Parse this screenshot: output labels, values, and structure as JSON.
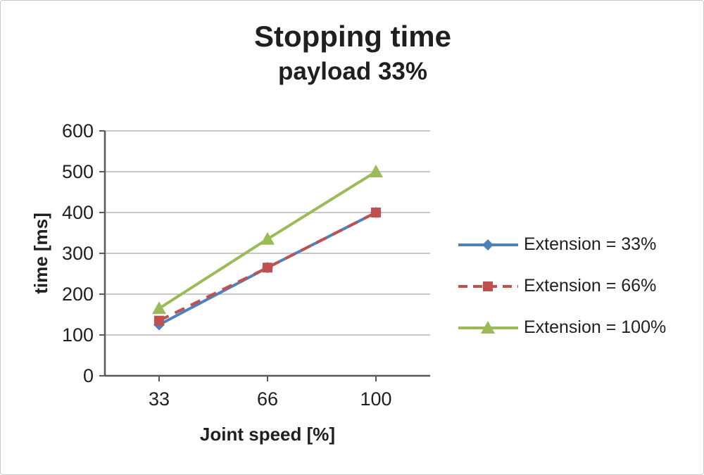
{
  "window": {
    "background": "#ffffff",
    "border_color": "#c9c9c9"
  },
  "chart_data": {
    "type": "line",
    "title": "Stopping time",
    "subtitle": "payload 33%",
    "xlabel": "Joint speed [%]",
    "ylabel": "time [ms]",
    "categories": [
      "33",
      "66",
      "100"
    ],
    "ylim": [
      0,
      600
    ],
    "ytick_step": 100,
    "grid": true,
    "legend_position": "right",
    "colors": {
      "gridline": "#b5b5b5",
      "axis": "#595959",
      "text": "#1f1f1f"
    },
    "series": [
      {
        "name": "Extension = 33%",
        "values": [
          125,
          265,
          400
        ],
        "color": "#4F81BD",
        "marker": "diamond",
        "dash": "solid"
      },
      {
        "name": "Extension = 66%",
        "values": [
          135,
          265,
          400
        ],
        "color": "#C0504D",
        "marker": "square",
        "dash": "dashed"
      },
      {
        "name": "Extension = 100%",
        "values": [
          165,
          335,
          500
        ],
        "color": "#9BBB59",
        "marker": "triangle",
        "dash": "solid"
      }
    ]
  }
}
